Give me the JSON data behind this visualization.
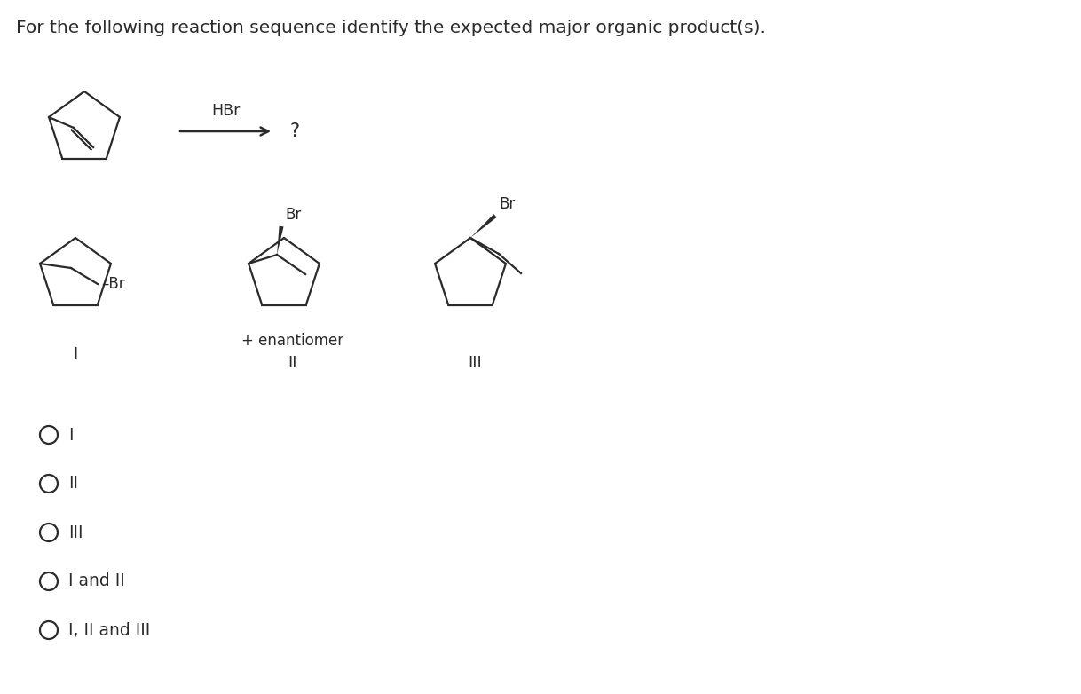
{
  "title": "For the following reaction sequence identify the expected major organic product(s).",
  "title_fontsize": 14.5,
  "background_color": "#ffffff",
  "text_color": "#2a2a2a",
  "options": [
    "I",
    "II",
    "III",
    "I and II",
    "I, II and III"
  ],
  "hbr_label": "HBr",
  "question_mark": "?",
  "enantiomer_label": "+ enantiomer"
}
